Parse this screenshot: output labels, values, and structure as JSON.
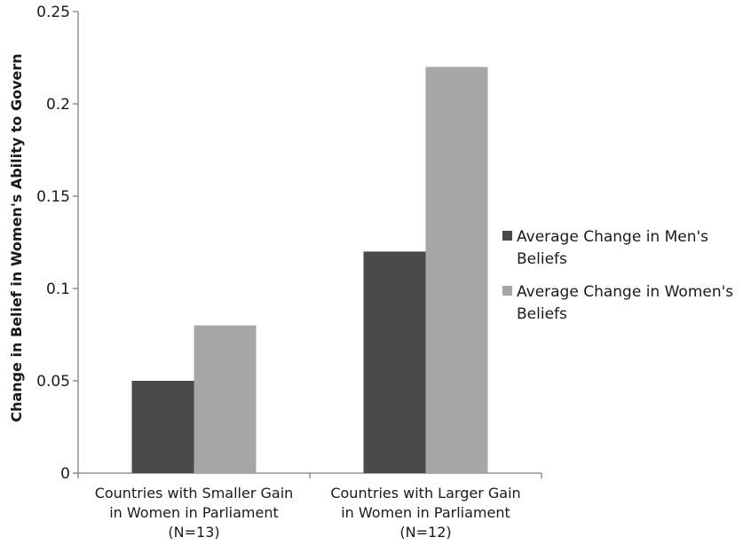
{
  "chart_data": {
    "type": "bar",
    "title": "",
    "ylabel": "Change in Belief in Women's Ability to Govern",
    "xlabel": "",
    "ylim": [
      0,
      0.25
    ],
    "yticks": [
      "0",
      "0.05",
      "0.1",
      "0.15",
      "0.2",
      "0.25"
    ],
    "grid": false,
    "legend_position": "right",
    "categories": [
      [
        "Countries with Smaller Gain",
        "in Women in Parliament",
        "(N=13)"
      ],
      [
        "Countries with Larger Gain",
        "in Women in Parliament",
        "(N=12)"
      ]
    ],
    "series": [
      {
        "name": "Average Change in Men's Beliefs",
        "name_lines": [
          "Average Change in Men's",
          "Beliefs"
        ],
        "color": "#4a4a4a",
        "values": [
          0.05,
          0.12
        ]
      },
      {
        "name": "Average Change in Women's Beliefs",
        "name_lines": [
          "Average Change in Women's",
          "Beliefs"
        ],
        "color": "#a6a6a6",
        "values": [
          0.08,
          0.22
        ]
      }
    ]
  }
}
